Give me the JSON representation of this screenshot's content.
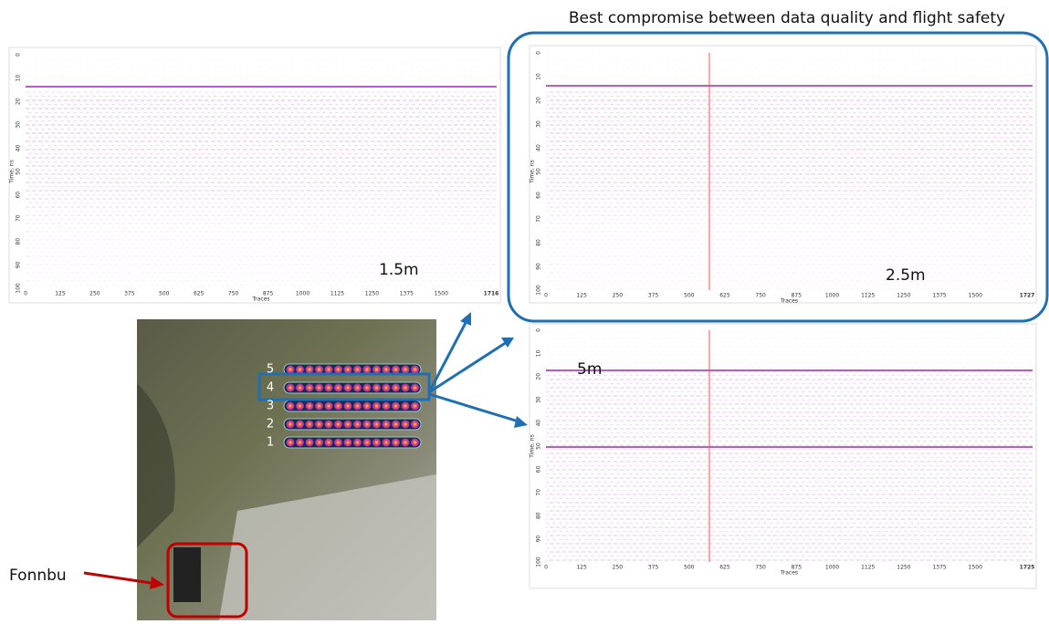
{
  "header": {
    "title": "Best compromise between data quality and flight safety"
  },
  "panels": [
    {
      "label": "1.5m",
      "y_axis_label": "Time, ns",
      "x_axis_label": "Traces",
      "y_ticks": [
        0,
        10,
        20,
        30,
        40,
        50,
        60,
        70,
        80,
        90,
        100
      ],
      "x_ticks": [
        0,
        125,
        250,
        375,
        500,
        625,
        750,
        875,
        1000,
        1125,
        1250,
        1375,
        1500,
        1716
      ]
    },
    {
      "label": "2.5m",
      "y_axis_label": "Time, ns",
      "x_axis_label": "Traces",
      "y_ticks": [
        0,
        10,
        20,
        30,
        40,
        50,
        60,
        70,
        80,
        90,
        100
      ],
      "x_ticks": [
        0,
        125,
        250,
        375,
        500,
        625,
        750,
        875,
        1000,
        1125,
        1250,
        1375,
        1500,
        1727
      ]
    },
    {
      "label": "5m",
      "y_axis_label": "Time, ns",
      "x_axis_label": "Traces",
      "y_ticks": [
        0,
        10,
        20,
        30,
        40,
        50,
        60,
        70,
        80,
        90,
        100
      ],
      "x_ticks": [
        0,
        125,
        250,
        375,
        500,
        625,
        750,
        875,
        1000,
        1125,
        1250,
        1375,
        1500,
        1725
      ]
    }
  ],
  "map": {
    "line_labels": [
      "5",
      "4",
      "3",
      "2",
      "1"
    ],
    "place_label": "Fonnbu"
  }
}
